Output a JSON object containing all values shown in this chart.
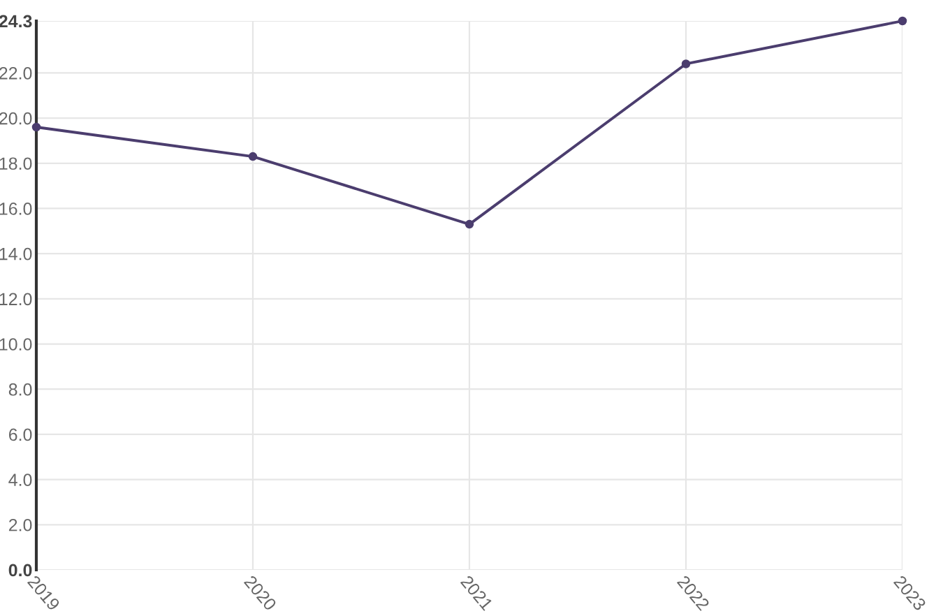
{
  "chart_data": {
    "type": "line",
    "categories": [
      "2019",
      "2020",
      "2021",
      "2022",
      "2023"
    ],
    "series": [
      {
        "color": "#4b3d6e",
        "values": [
          19.6,
          18.3,
          15.3,
          22.4,
          24.3
        ]
      }
    ],
    "ylim": [
      0,
      24.3
    ],
    "yticks": [
      {
        "value": 0,
        "label": "0.0"
      },
      {
        "value": 2,
        "label": "2.0"
      },
      {
        "value": 4,
        "label": "4.0"
      },
      {
        "value": 6,
        "label": "6.0"
      },
      {
        "value": 8,
        "label": "8.0"
      },
      {
        "value": 10,
        "label": "10.0"
      },
      {
        "value": 12,
        "label": "12.0"
      },
      {
        "value": 14,
        "label": "14.0"
      },
      {
        "value": 16,
        "label": "16.0"
      },
      {
        "value": 18,
        "label": "18.0"
      },
      {
        "value": 20,
        "label": "20.0"
      },
      {
        "value": 22,
        "label": "22.0"
      },
      24.3
    ],
    "grid": true,
    "marker": "circle",
    "line_style": "solid"
  }
}
